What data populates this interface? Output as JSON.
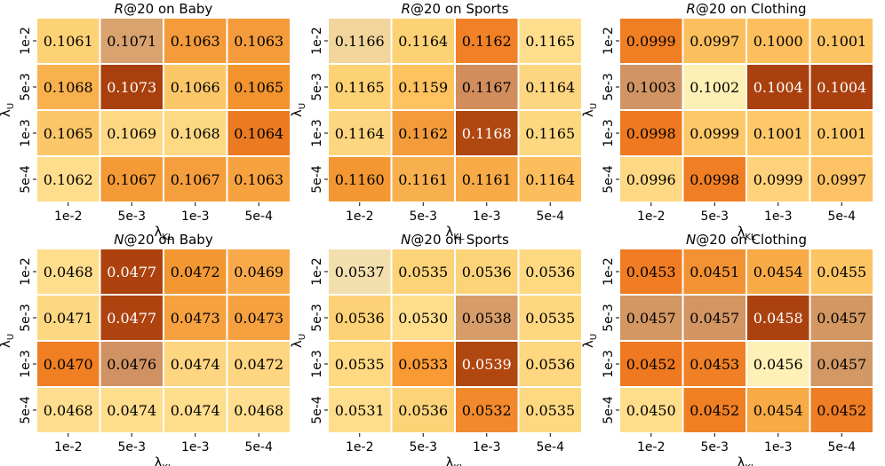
{
  "chart_data": [
    {
      "type": "heatmap",
      "metric": "R",
      "at": "@20 on ",
      "dataset": "Baby",
      "title": "R@20 on Baby",
      "xlabel": "λ",
      "xlabel_sub": "KL",
      "ylabel": "λ",
      "ylabel_sub": "U",
      "x_ticks": [
        "1e-2",
        "5e-3",
        "1e-3",
        "5e-4"
      ],
      "y_ticks": [
        "1e-2",
        "5e-3",
        "1e-3",
        "5e-4"
      ],
      "values": [
        [
          "0.1061",
          "0.1071",
          "0.1063",
          "0.1063"
        ],
        [
          "0.1068",
          "0.1073",
          "0.1066",
          "0.1065"
        ],
        [
          "0.1065",
          "0.1069",
          "0.1068",
          "0.1064"
        ],
        [
          "0.1062",
          "0.1067",
          "0.1067",
          "0.1063"
        ]
      ],
      "colors": [
        [
          "#fdd275",
          "#d9a36f",
          "#f49b3c",
          "#f49b3c"
        ],
        [
          "#f9b14e",
          "#a93f0d",
          "#fcc769",
          "#f3932e"
        ],
        [
          "#fcc769",
          "#fed884",
          "#fed983",
          "#ec7a21"
        ],
        [
          "#fedd8c",
          "#f49a37",
          "#f59e3d",
          "#f6a23f"
        ]
      ]
    },
    {
      "type": "heatmap",
      "metric": "R",
      "at": "@20 on ",
      "dataset": "Sports",
      "title": "R@20 on Sports",
      "xlabel": "λ",
      "xlabel_sub": "KL",
      "ylabel": "λ",
      "ylabel_sub": "U",
      "x_ticks": [
        "1e-2",
        "5e-3",
        "1e-3",
        "5e-4"
      ],
      "y_ticks": [
        "1e-2",
        "5e-3",
        "1e-3",
        "5e-4"
      ],
      "values": [
        [
          "0.1166",
          "0.1164",
          "0.1162",
          "0.1165"
        ],
        [
          "0.1165",
          "0.1159",
          "0.1167",
          "0.1164"
        ],
        [
          "0.1164",
          "0.1162",
          "0.1168",
          "0.1165"
        ],
        [
          "0.1160",
          "0.1161",
          "0.1161",
          "0.1164"
        ]
      ],
      "colors": [
        [
          "#f2d59c",
          "#fdd275",
          "#f18026",
          "#fedd8c"
        ],
        [
          "#fdd275",
          "#fec25e",
          "#d28d5c",
          "#fed580"
        ],
        [
          "#fed580",
          "#f49b3c",
          "#b04711",
          "#fed881"
        ],
        [
          "#f39733",
          "#f8b04e",
          "#f8aa46",
          "#fdbd5c"
        ]
      ]
    },
    {
      "type": "heatmap",
      "metric": "R",
      "at": "@20 on ",
      "dataset": "Clothing",
      "title": "R@20 on Clothing",
      "xlabel": "λ",
      "xlabel_sub": "KL",
      "ylabel": "λ",
      "ylabel_sub": "U",
      "x_ticks": [
        "1e-2",
        "5e-3",
        "1e-3",
        "5e-4"
      ],
      "y_ticks": [
        "1e-2",
        "5e-3",
        "1e-3",
        "5e-4"
      ],
      "values": [
        [
          "0.0999",
          "0.0997",
          "0.1000",
          "0.1001"
        ],
        [
          "0.1003",
          "0.1002",
          "0.1004",
          "0.1004"
        ],
        [
          "0.0998",
          "0.0999",
          "0.1001",
          "0.1001"
        ],
        [
          "0.0996",
          "0.0998",
          "0.0999",
          "0.0997"
        ]
      ],
      "colors": [
        [
          "#f07f24",
          "#fbbf5e",
          "#fdbf5e",
          "#fdc464"
        ],
        [
          "#d19565",
          "#fdf0b5",
          "#aa400e",
          "#a9400e"
        ],
        [
          "#ee7921",
          "#fdc867",
          "#fec868",
          "#fdc968"
        ],
        [
          "#fed884",
          "#f07e24",
          "#fed17a",
          "#fcc265"
        ]
      ]
    },
    {
      "type": "heatmap",
      "metric": "N",
      "at": "@20 on ",
      "dataset": "Baby",
      "title": "N@20 on Baby",
      "xlabel": "λ",
      "xlabel_sub": "KL",
      "ylabel": "λ",
      "ylabel_sub": "U",
      "x_ticks": [
        "1e-2",
        "5e-3",
        "1e-3",
        "5e-4"
      ],
      "y_ticks": [
        "1e-2",
        "5e-3",
        "1e-3",
        "5e-4"
      ],
      "values": [
        [
          "0.0468",
          "0.0477",
          "0.0472",
          "0.0469"
        ],
        [
          "0.0471",
          "0.0477",
          "0.0473",
          "0.0473"
        ],
        [
          "0.0470",
          "0.0476",
          "0.0474",
          "0.0472"
        ],
        [
          "0.0468",
          "0.0474",
          "0.0474",
          "0.0468"
        ]
      ],
      "colors": [
        [
          "#fedd8c",
          "#ad420e",
          "#f39733",
          "#f8aa4a"
        ],
        [
          "#fed782",
          "#ae430f",
          "#f6a140",
          "#f6a140"
        ],
        [
          "#f07f24",
          "#d09262",
          "#fed580",
          "#fed580"
        ],
        [
          "#fede8e",
          "#fedd8c",
          "#fedd8c",
          "#fede8e"
        ]
      ]
    },
    {
      "type": "heatmap",
      "metric": "N",
      "at": "@20 on ",
      "dataset": "Sports",
      "title": "N@20 on Sports",
      "xlabel": "λ",
      "xlabel_sub": "KL",
      "ylabel": "λ",
      "ylabel_sub": "U",
      "x_ticks": [
        "1e-2",
        "5e-3",
        "1e-3",
        "5e-4"
      ],
      "y_ticks": [
        "1e-2",
        "5e-3",
        "1e-3",
        "5e-4"
      ],
      "values": [
        [
          "0.0537",
          "0.0535",
          "0.0536",
          "0.0536"
        ],
        [
          "0.0536",
          "0.0530",
          "0.0538",
          "0.0535"
        ],
        [
          "0.0535",
          "0.0533",
          "0.0539",
          "0.0536"
        ],
        [
          "0.0531",
          "0.0536",
          "0.0532",
          "0.0535"
        ]
      ],
      "colors": [
        [
          "#f3dfae",
          "#fdd378",
          "#fdd378",
          "#fed982"
        ],
        [
          "#fdd276",
          "#fedd8c",
          "#d69d6a",
          "#fed780"
        ],
        [
          "#fed982",
          "#fa9a35",
          "#b04711",
          "#fed780"
        ],
        [
          "#fedd8c",
          "#fdd378",
          "#f28a2d",
          "#fed982"
        ]
      ]
    },
    {
      "type": "heatmap",
      "metric": "N",
      "at": "@20 on ",
      "dataset": "Clothing",
      "title": "N@20 on Clothing",
      "xlabel": "λ",
      "xlabel_sub": "KL",
      "ylabel": "λ",
      "ylabel_sub": "U",
      "x_ticks": [
        "1e-2",
        "5e-3",
        "1e-3",
        "5e-4"
      ],
      "y_ticks": [
        "1e-2",
        "5e-3",
        "1e-3",
        "5e-4"
      ],
      "values": [
        [
          "0.0453",
          "0.0451",
          "0.0454",
          "0.0455"
        ],
        [
          "0.0457",
          "0.0457",
          "0.0458",
          "0.0457"
        ],
        [
          "0.0452",
          "0.0453",
          "0.0456",
          "0.0457"
        ],
        [
          "0.0450",
          "0.0452",
          "0.0454",
          "0.0452"
        ]
      ],
      "colors": [
        [
          "#f07d24",
          "#f39232",
          "#f8aa46",
          "#fdc464"
        ],
        [
          "#d29762",
          "#d39663",
          "#ab410e",
          "#d29762"
        ],
        [
          "#ee7921",
          "#f08026",
          "#fef0b6",
          "#d29865"
        ],
        [
          "#fedd8c",
          "#f07f24",
          "#f8aa46",
          "#ef7d24"
        ]
      ]
    }
  ]
}
